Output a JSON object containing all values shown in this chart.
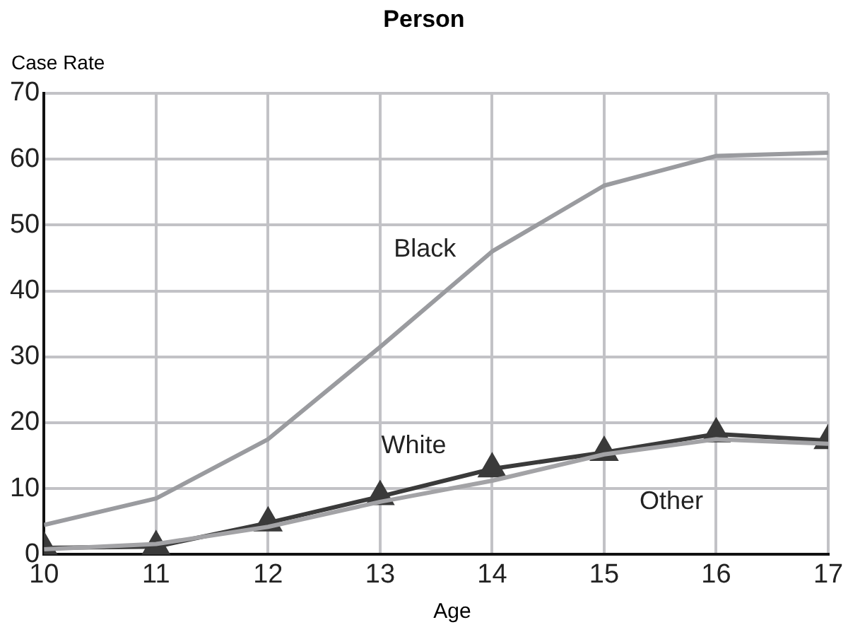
{
  "chart_data": {
    "type": "line",
    "title": "Person",
    "xlabel": "Age",
    "ylabel": "Case Rate",
    "x": [
      10,
      11,
      12,
      13,
      14,
      15,
      16,
      17
    ],
    "xlim": [
      10,
      17
    ],
    "xticks": [
      10,
      11,
      12,
      13,
      14,
      15,
      16,
      17
    ],
    "ylim": [
      0,
      70
    ],
    "yticks": [
      0,
      10,
      20,
      30,
      40,
      50,
      60,
      70
    ],
    "grid": true,
    "legend": false,
    "series": [
      {
        "name": "Black",
        "color": "#9a9b9f",
        "marker": "none",
        "values": [
          4.5,
          8.5,
          17.5,
          31.5,
          46,
          56,
          60.5,
          61
        ]
      },
      {
        "name": "White",
        "color": "#3a3a3a",
        "marker": "triangle",
        "values": [
          1,
          1.2,
          4.8,
          8.8,
          13,
          15.5,
          18.3,
          17.3
        ]
      },
      {
        "name": "Other",
        "color": "#a3a3a6",
        "marker": "none",
        "values": [
          0.8,
          1.6,
          4.2,
          8,
          11.2,
          15.2,
          17.5,
          16.8
        ]
      }
    ]
  }
}
